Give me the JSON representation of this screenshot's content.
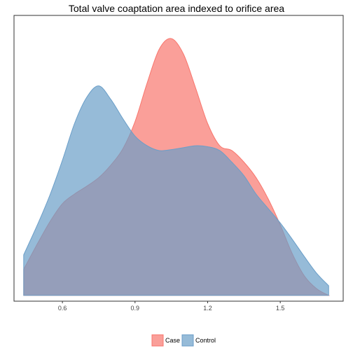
{
  "chart_data": {
    "type": "area",
    "title": "Total valve coaptation area indexed to orifice area",
    "xlabel": "",
    "ylabel": "",
    "xlim": [
      0.4,
      1.76
    ],
    "ylim": [
      -0.06,
      2.9
    ],
    "x_ticks": [
      0.6,
      0.9,
      1.2,
      1.5
    ],
    "x_tick_labels": [
      "0.6",
      "0.9",
      "1.2",
      "1.5"
    ],
    "legend_position": "bottom",
    "grid": false,
    "series": [
      {
        "name": "Case",
        "color": "#F8766D",
        "x": [
          0.44,
          0.5,
          0.55,
          0.6,
          0.65,
          0.7,
          0.75,
          0.8,
          0.85,
          0.9,
          0.95,
          1.0,
          1.05,
          1.1,
          1.15,
          1.2,
          1.25,
          1.3,
          1.35,
          1.4,
          1.45,
          1.5,
          1.55,
          1.6,
          1.65,
          1.7
        ],
        "y": [
          0.27,
          0.55,
          0.77,
          0.95,
          1.05,
          1.13,
          1.22,
          1.35,
          1.52,
          1.8,
          2.2,
          2.55,
          2.66,
          2.5,
          2.15,
          1.78,
          1.55,
          1.5,
          1.38,
          1.22,
          1.0,
          0.73,
          0.43,
          0.2,
          0.07,
          0.0
        ]
      },
      {
        "name": "Control",
        "color": "#6A9EC8",
        "x": [
          0.44,
          0.5,
          0.55,
          0.6,
          0.65,
          0.7,
          0.75,
          0.8,
          0.85,
          0.9,
          0.95,
          1.0,
          1.05,
          1.1,
          1.15,
          1.2,
          1.25,
          1.3,
          1.35,
          1.4,
          1.45,
          1.5,
          1.55,
          1.6,
          1.65,
          1.7
        ],
        "y": [
          0.42,
          0.75,
          1.05,
          1.4,
          1.78,
          2.05,
          2.17,
          2.03,
          1.83,
          1.65,
          1.55,
          1.5,
          1.51,
          1.53,
          1.55,
          1.54,
          1.5,
          1.38,
          1.24,
          1.05,
          0.9,
          0.75,
          0.58,
          0.4,
          0.23,
          0.1
        ]
      }
    ]
  }
}
